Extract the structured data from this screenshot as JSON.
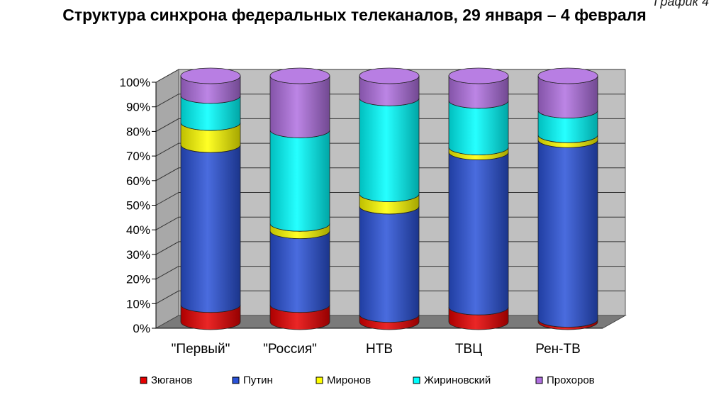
{
  "corner_label": "График 4",
  "chart_data": {
    "type": "bar",
    "stacked": true,
    "normalized": true,
    "title": "Структура синхрона федеральных телеканалов, 29 января – 4 февраля",
    "xlabel": "",
    "ylabel": "",
    "ylim": [
      0,
      100
    ],
    "yticks": [
      "0%",
      "10%",
      "20%",
      "30%",
      "40%",
      "50%",
      "60%",
      "70%",
      "80%",
      "90%",
      "100%"
    ],
    "categories": [
      "\"Первый\"",
      "\"Россия\"",
      "НТВ",
      "ТВЦ",
      "Рен-ТВ"
    ],
    "series": [
      {
        "name": "Зюганов",
        "color": "#e60000",
        "values": [
          7,
          7,
          3,
          6,
          1
        ]
      },
      {
        "name": "Путин",
        "color": "#2a52d8",
        "values": [
          65,
          30,
          44,
          63,
          73
        ]
      },
      {
        "name": "Миронов",
        "color": "#ffff00",
        "values": [
          9,
          3,
          5,
          2,
          2
        ]
      },
      {
        "name": "Жириновский",
        "color": "#00ffff",
        "values": [
          11,
          38,
          39,
          19,
          10
        ]
      },
      {
        "name": "Прохоров",
        "color": "#b070e0",
        "values": [
          8,
          22,
          9,
          10,
          14
        ]
      }
    ],
    "legend_position": "bottom",
    "grid": true
  }
}
